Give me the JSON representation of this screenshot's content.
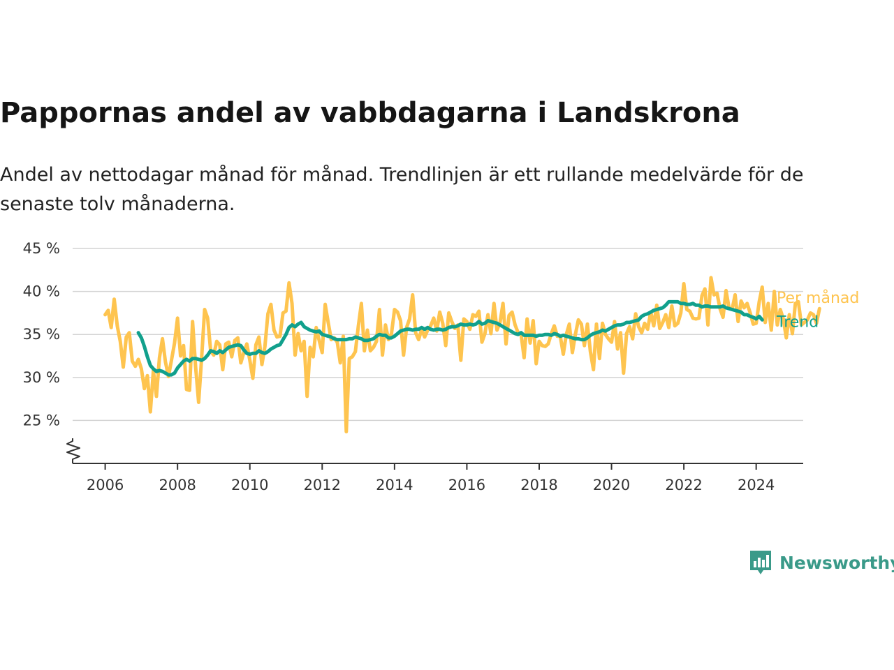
{
  "title": "Pappornas andel av vabbdagarna i Landskrona",
  "subtitle": "Andel av nettodagar månad för månad. Trendlinjen är ett rullande medelvärde för de senaste tolv månaderna.",
  "brand": {
    "name": "Newsworthy",
    "icon": "newsworthy-logo-icon",
    "color": "#3a9a89"
  },
  "chart_data": {
    "type": "line",
    "title": "Pappornas andel av vabbdagarna i Landskrona",
    "xlabel": "",
    "ylabel": "",
    "x_ticks": [
      2006,
      2008,
      2010,
      2012,
      2014,
      2016,
      2018,
      2020,
      2022,
      2024
    ],
    "x_tick_labels": [
      "2006",
      "2008",
      "2010",
      "2012",
      "2014",
      "2016",
      "2018",
      "2020",
      "2022",
      "2024"
    ],
    "y_ticks": [
      25,
      30,
      35,
      40,
      45
    ],
    "y_tick_labels": [
      "25 %",
      "30 %",
      "35 %",
      "40 %",
      "45 %"
    ],
    "xlim": [
      2005.1,
      2025.3
    ],
    "ylim": [
      20,
      45
    ],
    "y_axis_break": true,
    "grid": "horizontal",
    "legend": "direct labels at line ends (right)",
    "series": [
      {
        "name": "Per månad",
        "color": "#fec44f",
        "x_start": 2006.0,
        "x_step": 0.0833333,
        "values": [
          37.3,
          37.8,
          35.8,
          39.1,
          36.0,
          34.2,
          31.2,
          34.7,
          35.2,
          31.9,
          31.3,
          32.1,
          31.0,
          28.7,
          30.2,
          26.0,
          30.8,
          27.8,
          32.3,
          34.5,
          31.8,
          30.1,
          32.0,
          34.0,
          36.9,
          32.5,
          33.7,
          28.6,
          28.5,
          36.5,
          31.2,
          27.1,
          32.3,
          37.9,
          36.9,
          33.1,
          32.6,
          34.2,
          33.8,
          30.9,
          33.9,
          34.1,
          32.4,
          34.3,
          34.6,
          31.7,
          32.9,
          33.9,
          32.0,
          29.9,
          33.8,
          34.7,
          31.5,
          33.6,
          37.4,
          38.5,
          35.5,
          34.7,
          34.8,
          37.5,
          37.7,
          41.0,
          38.6,
          32.6,
          35.1,
          33.1,
          34.2,
          27.8,
          33.5,
          32.4,
          35.8,
          34.3,
          32.9,
          38.5,
          36.4,
          34.4,
          34.6,
          34.1,
          31.7,
          34.8,
          23.7,
          32.2,
          32.4,
          33.0,
          36.0,
          38.6,
          33.1,
          35.5,
          33.1,
          33.5,
          34.2,
          37.9,
          32.6,
          36.1,
          34.4,
          35.1,
          37.9,
          37.6,
          36.6,
          32.6,
          35.8,
          36.8,
          39.6,
          35.2,
          34.4,
          35.6,
          34.7,
          35.5,
          36.0,
          36.9,
          35.4,
          37.6,
          36.3,
          33.7,
          37.5,
          36.5,
          35.7,
          36.1,
          32.0,
          36.8,
          36.5,
          35.6,
          37.3,
          37.1,
          37.7,
          34.1,
          35.1,
          37.3,
          35.1,
          38.6,
          35.5,
          36.4,
          38.6,
          33.9,
          37.2,
          37.6,
          36.1,
          35.2,
          35.0,
          32.3,
          36.8,
          34.0,
          36.6,
          31.6,
          34.2,
          33.7,
          33.6,
          33.9,
          35.1,
          36.0,
          34.8,
          34.8,
          32.7,
          35.0,
          36.2,
          32.9,
          35.0,
          36.7,
          36.2,
          33.7,
          36.2,
          33.0,
          30.9,
          36.2,
          32.2,
          36.3,
          35.0,
          34.5,
          34.1,
          36.5,
          33.3,
          35.2,
          30.5,
          35.1,
          35.9,
          34.5,
          37.4,
          35.9,
          35.2,
          36.3,
          35.6,
          37.6,
          36.0,
          38.4,
          35.7,
          36.4,
          37.3,
          35.8,
          38.3,
          36.0,
          36.3,
          37.5,
          40.9,
          37.9,
          37.7,
          36.9,
          36.8,
          36.9,
          39.5,
          40.3,
          36.1,
          41.6,
          39.6,
          39.8,
          38.0,
          37.0,
          40.1,
          38.1,
          37.9,
          39.6,
          36.5,
          38.9,
          38.1,
          38.6,
          37.5,
          36.2,
          36.3,
          38.8,
          40.5,
          36.4,
          38.6,
          35.5,
          40.0,
          36.1,
          37.9,
          36.8,
          34.6,
          37.3,
          35.1,
          38.6,
          38.8,
          36.1,
          36.4,
          36.7,
          37.5,
          37.3,
          36.3,
          38.0
        ]
      },
      {
        "name": "Trend",
        "color": "#11a08c",
        "x_start": 2006.9167,
        "x_step": 0.0833333,
        "values": [
          35.2,
          34.6,
          33.6,
          32.4,
          31.4,
          31.0,
          30.7,
          30.8,
          30.7,
          30.5,
          30.3,
          30.3,
          30.5,
          31.1,
          31.5,
          31.9,
          32.1,
          31.9,
          32.2,
          32.2,
          32.1,
          32.0,
          32.2,
          32.6,
          33.1,
          33.0,
          32.8,
          33.1,
          32.9,
          33.2,
          33.5,
          33.6,
          33.7,
          33.8,
          33.7,
          33.2,
          32.8,
          32.7,
          32.8,
          32.8,
          33.1,
          32.9,
          32.8,
          33.0,
          33.3,
          33.5,
          33.7,
          33.8,
          34.4,
          35.0,
          35.8,
          36.1,
          35.9,
          36.2,
          36.4,
          35.9,
          35.7,
          35.5,
          35.4,
          35.3,
          35.4,
          35.0,
          34.9,
          34.8,
          34.7,
          34.5,
          34.4,
          34.4,
          34.4,
          34.4,
          34.5,
          34.5,
          34.7,
          34.6,
          34.5,
          34.3,
          34.3,
          34.4,
          34.5,
          34.8,
          35.0,
          34.9,
          34.9,
          34.6,
          34.6,
          34.8,
          35.1,
          35.4,
          35.5,
          35.6,
          35.6,
          35.5,
          35.6,
          35.6,
          35.8,
          35.6,
          35.8,
          35.6,
          35.5,
          35.6,
          35.6,
          35.5,
          35.6,
          35.8,
          35.9,
          35.9,
          36.0,
          36.2,
          36.1,
          36.1,
          36.2,
          36.1,
          36.2,
          36.5,
          36.2,
          36.3,
          36.6,
          36.5,
          36.4,
          36.3,
          36.1,
          35.9,
          35.7,
          35.5,
          35.3,
          35.1,
          35.0,
          35.2,
          34.9,
          34.9,
          34.9,
          34.9,
          34.8,
          34.9,
          34.9,
          35.0,
          35.0,
          34.9,
          35.1,
          35.0,
          34.8,
          34.9,
          34.8,
          34.7,
          34.6,
          34.5,
          34.5,
          34.4,
          34.4,
          34.6,
          34.9,
          35.1,
          35.2,
          35.3,
          35.5,
          35.4,
          35.6,
          35.8,
          36.0,
          36.1,
          36.1,
          36.2,
          36.4,
          36.4,
          36.5,
          36.6,
          36.7,
          37.1,
          37.3,
          37.4,
          37.6,
          37.8,
          37.9,
          38.0,
          38.1,
          38.4,
          38.8,
          38.8,
          38.8,
          38.8,
          38.6,
          38.6,
          38.5,
          38.5,
          38.6,
          38.4,
          38.4,
          38.2,
          38.3,
          38.3,
          38.2,
          38.2,
          38.2,
          38.2,
          38.3,
          38.1,
          38.0,
          37.9,
          37.8,
          37.7,
          37.6,
          37.3,
          37.3,
          37.1,
          37.0,
          36.8,
          37.1,
          36.7
        ]
      }
    ]
  }
}
